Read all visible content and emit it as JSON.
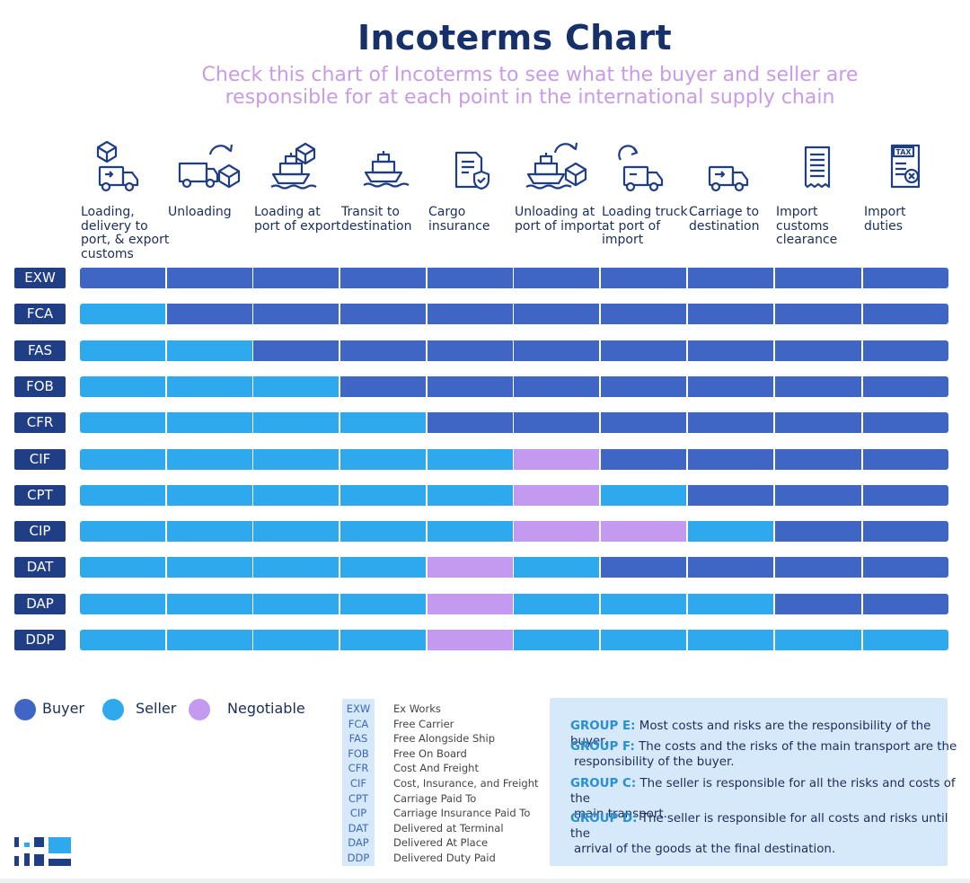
{
  "title": "Incoterms Chart",
  "subtitle_line1": "Check this chart of Incoterms to see what the buyer and seller are",
  "subtitle_line2": "responsible for at each point in the international supply chain",
  "colors": {
    "buyer": "#3f66c4",
    "seller": "#2ea9ee",
    "negotiable": "#c39af0",
    "title": "#16306a",
    "label_bg": "#1f3e86",
    "group_key": "#2a8fd0"
  },
  "columns": [
    {
      "icon": "truck-box-icon",
      "lines": [
        "Loading,",
        "delivery to",
        "port, & export",
        "customs"
      ]
    },
    {
      "icon": "truck-unload-icon",
      "lines": [
        "Unloading"
      ]
    },
    {
      "icon": "ship-box-icon",
      "lines": [
        "Loading at",
        "port of export"
      ]
    },
    {
      "icon": "ship-icon",
      "lines": [
        "Transit to",
        "destination"
      ]
    },
    {
      "icon": "document-shield-icon",
      "lines": [
        "Cargo",
        "insurance"
      ]
    },
    {
      "icon": "ship-unload-icon",
      "lines": [
        "Unloading at",
        "port of import"
      ]
    },
    {
      "icon": "truck-reload-icon",
      "lines": [
        "Loading truck",
        "at port of",
        "import"
      ]
    },
    {
      "icon": "truck-icon",
      "lines": [
        "Carriage to",
        "destination"
      ]
    },
    {
      "icon": "receipt-icon",
      "lines": [
        "Import",
        "customs",
        "clearance"
      ]
    },
    {
      "icon": "tax-document-icon",
      "lines": [
        "Import",
        "duties"
      ]
    }
  ],
  "rows": [
    {
      "term": "EXW",
      "cells": [
        "B",
        "B",
        "B",
        "B",
        "B",
        "B",
        "B",
        "B",
        "B",
        "B"
      ]
    },
    {
      "term": "FCA",
      "cells": [
        "S",
        "B",
        "B",
        "B",
        "B",
        "B",
        "B",
        "B",
        "B",
        "B"
      ]
    },
    {
      "term": "FAS",
      "cells": [
        "S",
        "S",
        "B",
        "B",
        "B",
        "B",
        "B",
        "B",
        "B",
        "B"
      ]
    },
    {
      "term": "FOB",
      "cells": [
        "S",
        "S",
        "S",
        "B",
        "B",
        "B",
        "B",
        "B",
        "B",
        "B"
      ]
    },
    {
      "term": "CFR",
      "cells": [
        "S",
        "S",
        "S",
        "S",
        "B",
        "B",
        "B",
        "B",
        "B",
        "B"
      ]
    },
    {
      "term": "CIF",
      "cells": [
        "S",
        "S",
        "S",
        "S",
        "S",
        "N",
        "B",
        "B",
        "B",
        "B"
      ]
    },
    {
      "term": "CPT",
      "cells": [
        "S",
        "S",
        "S",
        "S",
        "S",
        "N",
        "S",
        "B",
        "B",
        "B"
      ]
    },
    {
      "term": "CIP",
      "cells": [
        "S",
        "S",
        "S",
        "S",
        "S",
        "N",
        "N",
        "S",
        "B",
        "B"
      ]
    },
    {
      "term": "DAT",
      "cells": [
        "S",
        "S",
        "S",
        "S",
        "N",
        "S",
        "B",
        "B",
        "B",
        "B"
      ]
    },
    {
      "term": "DAP",
      "cells": [
        "S",
        "S",
        "S",
        "S",
        "N",
        "S",
        "S",
        "S",
        "B",
        "B"
      ]
    },
    {
      "term": "DDP",
      "cells": [
        "S",
        "S",
        "S",
        "S",
        "N",
        "S",
        "S",
        "S",
        "S",
        "S"
      ]
    }
  ],
  "legend": [
    {
      "key": "buyer",
      "label": "Buyer"
    },
    {
      "key": "seller",
      "label": "Seller"
    },
    {
      "key": "negotiable",
      "label": "Negotiable"
    }
  ],
  "abbreviations": [
    {
      "code": "EXW",
      "name": "Ex Works"
    },
    {
      "code": "FCA",
      "name": "Free Carrier"
    },
    {
      "code": "FAS",
      "name": "Free Alongside Ship"
    },
    {
      "code": "FOB",
      "name": "Free On Board"
    },
    {
      "code": "CFR",
      "name": "Cost And Freight"
    },
    {
      "code": "CIF",
      "name": "Cost, Insurance, and Freight"
    },
    {
      "code": "CPT",
      "name": "Carriage Paid To"
    },
    {
      "code": "CIP",
      "name": "Carriage Insurance Paid To"
    },
    {
      "code": "DAT",
      "name": "Delivered at Terminal"
    },
    {
      "code": "DAP",
      "name": "Delivered At Place"
    },
    {
      "code": "DDP",
      "name": "Delivered Duty Paid"
    }
  ],
  "groups": [
    {
      "key": "GROUP E:",
      "lines": [
        " Most costs and risks are the responsibility of the buyer."
      ]
    },
    {
      "key": "GROUP F:",
      "lines": [
        " The costs and the risks of the main transport are the",
        "responsibility of the buyer."
      ]
    },
    {
      "key": "GROUP C:",
      "lines": [
        " The seller is responsible for all the risks and costs of the",
        "main transport."
      ]
    },
    {
      "key": "GROUP D:",
      "lines": [
        " The seller is responsible for all costs and risks until the",
        "arrival of the goods at the final destination."
      ]
    }
  ]
}
